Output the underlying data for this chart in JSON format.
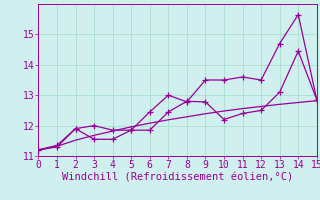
{
  "xlabel": "Windchill (Refroidissement éolien,°C)",
  "bg_color": "#cff0ee",
  "line_color": "#990099",
  "grid_color": "#aaddcc",
  "spine_color": "#990099",
  "xmin": 0,
  "xmax": 15,
  "ymin": 11,
  "ymax": 16,
  "x_data": [
    0,
    1,
    2,
    3,
    4,
    5,
    6,
    7,
    8,
    9,
    10,
    11,
    12,
    13,
    14,
    15
  ],
  "y_jagged": [
    11.2,
    11.3,
    11.9,
    11.55,
    11.55,
    11.85,
    12.45,
    13.0,
    12.78,
    13.5,
    13.5,
    13.6,
    13.5,
    14.7,
    15.65,
    12.85
  ],
  "y_smooth": [
    11.2,
    11.35,
    11.9,
    12.0,
    11.85,
    11.85,
    11.85,
    12.45,
    12.8,
    12.78,
    12.2,
    12.4,
    12.5,
    13.1,
    14.45,
    12.85
  ],
  "y_trend": [
    11.2,
    11.32,
    11.52,
    11.68,
    11.82,
    11.96,
    12.08,
    12.19,
    12.29,
    12.39,
    12.48,
    12.56,
    12.63,
    12.7,
    12.76,
    12.82
  ],
  "yticks": [
    11,
    12,
    13,
    14,
    15
  ],
  "xticks": [
    0,
    1,
    2,
    3,
    4,
    5,
    6,
    7,
    8,
    9,
    10,
    11,
    12,
    13,
    14,
    15
  ],
  "tick_fontsize": 7,
  "xlabel_fontsize": 7.5,
  "linewidth": 0.9,
  "marker": "+",
  "markersize": 4
}
